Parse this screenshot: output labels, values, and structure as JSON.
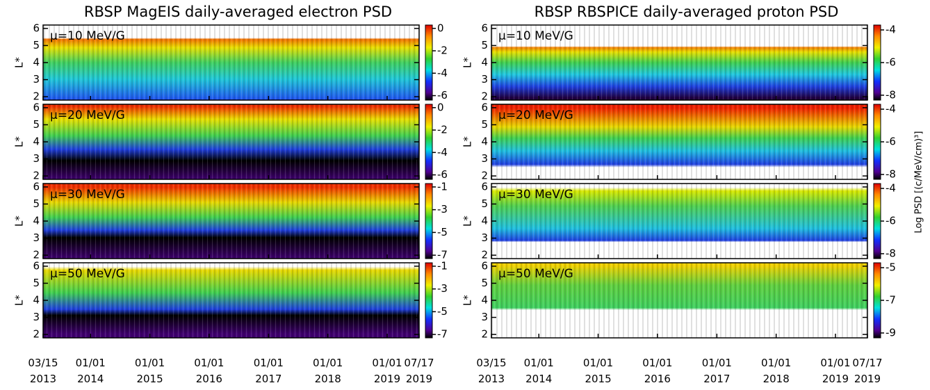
{
  "chart_data": [
    {
      "type": "heatmap",
      "title": "RBSP MagEIS daily-averaged electron PSD",
      "ylabel": "L*",
      "ylim": [
        1.8,
        6.2
      ],
      "yticks": [
        2,
        3,
        4,
        5,
        6
      ],
      "xlim": [
        "2013-03-15",
        "2019-07-17"
      ],
      "xticks": [
        {
          "value": "2013-03-15",
          "label": "03/15 2013"
        },
        {
          "value": "2014-01-01",
          "label": "01/01 2014"
        },
        {
          "value": "2015-01-01",
          "label": "01/01 2015"
        },
        {
          "value": "2016-01-01",
          "label": "01/01 2016"
        },
        {
          "value": "2017-01-01",
          "label": "01/01 2017"
        },
        {
          "value": "2018-01-01",
          "label": "01/01 2018"
        },
        {
          "value": "2019-01-01",
          "label": "01/01 2019"
        },
        {
          "value": "2019-07-17",
          "label": "07/17 2019"
        }
      ],
      "panels": [
        {
          "label": "μ=10 MeV/G",
          "clim": [
            -6.4,
            0.3
          ],
          "cticks": [
            0,
            -2,
            -4,
            -6
          ]
        },
        {
          "label": "μ=20 MeV/G",
          "clim": [
            -6.4,
            0.3
          ],
          "cticks": [
            0,
            -2,
            -4,
            -6
          ]
        },
        {
          "label": "μ=30 MeV/G",
          "clim": [
            -7.3,
            -0.7
          ],
          "cticks": [
            -1,
            -3,
            -5,
            -7
          ]
        },
        {
          "label": "μ=50 MeV/G",
          "clim": [
            -7.3,
            -0.7
          ],
          "cticks": [
            -1,
            -3,
            -5,
            -7
          ]
        }
      ]
    },
    {
      "type": "heatmap",
      "title": "RBSP RBSPICE daily-averaged proton PSD",
      "ylabel": "L*",
      "colorbar_label": "Log PSD [(c/MeV/cm)³]",
      "ylim": [
        1.8,
        6.2
      ],
      "yticks": [
        2,
        3,
        4,
        5,
        6
      ],
      "xlim": [
        "2013-03-15",
        "2019-07-17"
      ],
      "xticks": [
        {
          "value": "2013-03-15",
          "label": "03/15 2013"
        },
        {
          "value": "2014-01-01",
          "label": "01/01 2014"
        },
        {
          "value": "2015-01-01",
          "label": "01/01 2015"
        },
        {
          "value": "2016-01-01",
          "label": "01/01 2016"
        },
        {
          "value": "2017-01-01",
          "label": "01/01 2017"
        },
        {
          "value": "2018-01-01",
          "label": "01/01 2018"
        },
        {
          "value": "2019-01-01",
          "label": "01/01 2019"
        },
        {
          "value": "2019-07-17",
          "label": "07/17 2019"
        }
      ],
      "panels": [
        {
          "label": "μ=10 MeV/G",
          "clim": [
            -8.3,
            -3.7
          ],
          "cticks": [
            -4,
            -6,
            -8
          ]
        },
        {
          "label": "μ=20 MeV/G",
          "clim": [
            -8.3,
            -3.7
          ],
          "cticks": [
            -4,
            -6,
            -8
          ]
        },
        {
          "label": "μ=30 MeV/G",
          "clim": [
            -8.3,
            -3.7
          ],
          "cticks": [
            -4,
            -6,
            -8
          ]
        },
        {
          "label": "μ=50 MeV/G",
          "clim": [
            -9.3,
            -4.7
          ],
          "cticks": [
            -5,
            -7,
            -9
          ]
        }
      ]
    }
  ]
}
